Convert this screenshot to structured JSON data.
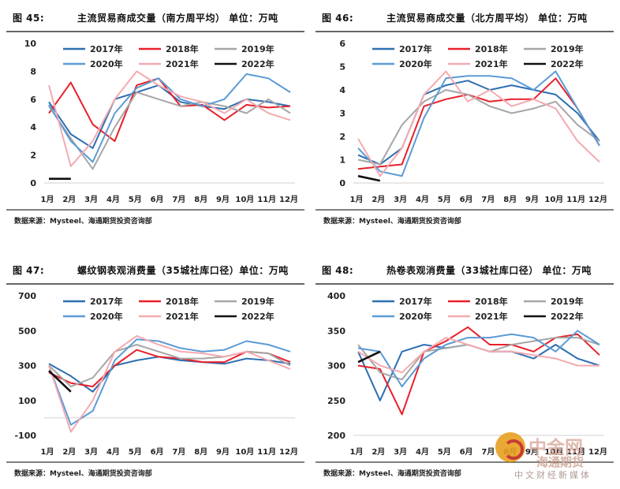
{
  "footer_source": "数据来源：Mysteel、海通期货投资咨询部",
  "watermark": {
    "line1": "中金网",
    "line2": "海通期货",
    "line3": "中文财经新媒体"
  },
  "series_styles": [
    {
      "name": "2017年",
      "color": "#2e6fb0"
    },
    {
      "name": "2018年",
      "color": "#e8202a"
    },
    {
      "name": "2019年",
      "color": "#a6a6a6"
    },
    {
      "name": "2020年",
      "color": "#5b9bd5"
    },
    {
      "name": "2021年",
      "color": "#f4aab0"
    },
    {
      "name": "2022年",
      "color": "#111111"
    }
  ],
  "chart_data": [
    {
      "type": "line",
      "number": "图 45:",
      "title": "主流贸易商成交量（南方周平均）  单位：万吨",
      "categories": [
        "1月",
        "2月",
        "3月",
        "4月",
        "5月",
        "6月",
        "7月",
        "8月",
        "9月",
        "10月",
        "11月",
        "12月"
      ],
      "yticks": [
        "10",
        "8",
        "6",
        "4",
        "2",
        "0"
      ],
      "ylim": [
        0,
        10
      ],
      "series": [
        {
          "name": "2017年",
          "values": [
            5.8,
            3.5,
            2.5,
            6.0,
            6.5,
            7.0,
            5.8,
            5.5,
            5.3,
            6.0,
            5.8,
            5.5
          ]
        },
        {
          "name": "2018年",
          "values": [
            5.0,
            7.2,
            4.2,
            3.0,
            7.0,
            7.5,
            5.5,
            5.6,
            4.5,
            5.6,
            5.4,
            5.5
          ]
        },
        {
          "name": "2019年",
          "values": [
            5.5,
            3.2,
            1.0,
            4.0,
            6.5,
            6.0,
            5.5,
            5.8,
            5.5,
            5.0,
            6.0,
            5.0
          ]
        },
        {
          "name": "2020年",
          "values": [
            5.6,
            3.0,
            1.5,
            5.0,
            6.8,
            7.5,
            6.0,
            5.5,
            6.0,
            7.8,
            7.5,
            6.5
          ]
        },
        {
          "name": "2021年",
          "values": [
            7.0,
            1.2,
            3.0,
            6.0,
            8.0,
            7.0,
            6.2,
            5.8,
            5.0,
            6.0,
            5.0,
            4.5
          ]
        },
        {
          "name": "2022年",
          "values": [
            0.3,
            0.3,
            null,
            null,
            null,
            null,
            null,
            null,
            null,
            null,
            null,
            null
          ]
        }
      ]
    },
    {
      "type": "line",
      "number": "图 46:",
      "title": "主流贸易商成交量（北方周平均）  单位：万吨",
      "categories": [
        "1月",
        "2月",
        "3月",
        "4月",
        "5月",
        "6月",
        "7月",
        "8月",
        "9月",
        "10月",
        "11月",
        "12月"
      ],
      "yticks": [
        "6",
        "5",
        "4",
        "3",
        "2",
        "1",
        "0"
      ],
      "ylim": [
        0,
        6
      ],
      "series": [
        {
          "name": "2017年",
          "values": [
            1.2,
            0.8,
            1.5,
            3.8,
            4.2,
            4.4,
            4.0,
            4.2,
            4.0,
            3.8,
            3.0,
            1.8
          ]
        },
        {
          "name": "2018年",
          "values": [
            0.6,
            0.7,
            0.8,
            3.3,
            3.6,
            3.8,
            3.5,
            3.6,
            3.6,
            4.5,
            3.2,
            1.6
          ]
        },
        {
          "name": "2019年",
          "values": [
            1.0,
            0.8,
            2.5,
            3.5,
            4.0,
            3.8,
            3.3,
            3.0,
            3.2,
            3.5,
            2.5,
            1.8
          ]
        },
        {
          "name": "2020年",
          "values": [
            1.5,
            0.5,
            0.3,
            2.8,
            4.5,
            4.6,
            4.6,
            4.5,
            4.0,
            4.8,
            3.2,
            1.6
          ]
        },
        {
          "name": "2021年",
          "values": [
            1.9,
            0.3,
            1.5,
            3.8,
            4.8,
            3.5,
            4.0,
            3.3,
            3.6,
            3.2,
            1.8,
            0.9
          ]
        },
        {
          "name": "2022年",
          "values": [
            0.3,
            0.1,
            null,
            null,
            null,
            null,
            null,
            null,
            null,
            null,
            null,
            null
          ]
        }
      ]
    },
    {
      "type": "line",
      "number": "图 47:",
      "title": "螺纹钢表观消费量（35城社库口径）单位：万吨",
      "categories": [
        "1月",
        "2月",
        "3月",
        "4月",
        "5月",
        "6月",
        "7月",
        "8月",
        "9月",
        "10月",
        "11月",
        "12月"
      ],
      "yticks": [
        "700",
        "500",
        "300",
        "100",
        "-100"
      ],
      "ylim": [
        -100,
        700
      ],
      "series": [
        {
          "name": "2017年",
          "values": [
            310,
            240,
            150,
            300,
            330,
            350,
            330,
            320,
            310,
            340,
            330,
            310
          ]
        },
        {
          "name": "2018年",
          "values": [
            260,
            200,
            180,
            300,
            390,
            350,
            340,
            320,
            320,
            380,
            370,
            320
          ]
        },
        {
          "name": "2019年",
          "values": [
            300,
            180,
            230,
            380,
            420,
            380,
            340,
            340,
            350,
            380,
            370,
            300
          ]
        },
        {
          "name": "2020年",
          "values": [
            300,
            -40,
            40,
            330,
            450,
            440,
            400,
            380,
            390,
            440,
            420,
            380
          ]
        },
        {
          "name": "2021年",
          "values": [
            300,
            -80,
            100,
            380,
            470,
            420,
            380,
            370,
            350,
            380,
            330,
            280
          ]
        },
        {
          "name": "2022年",
          "values": [
            270,
            150,
            null,
            null,
            null,
            null,
            null,
            null,
            null,
            null,
            null,
            null
          ]
        }
      ]
    },
    {
      "type": "line",
      "number": "图 48:",
      "title": "热卷表观消费量（33城社库口径）  单位：万吨",
      "categories": [
        "1月",
        "2月",
        "3月",
        "4月",
        "5月",
        "6月",
        "7月",
        "8月",
        "9月",
        "10月",
        "11月",
        "12月"
      ],
      "yticks": [
        "400",
        "350",
        "300",
        "250",
        "200"
      ],
      "ylim": [
        200,
        400
      ],
      "series": [
        {
          "name": "2017年",
          "values": [
            320,
            250,
            320,
            330,
            325,
            330,
            320,
            320,
            310,
            330,
            310,
            300
          ]
        },
        {
          "name": "2018年",
          "values": [
            300,
            295,
            230,
            320,
            335,
            355,
            330,
            330,
            320,
            340,
            345,
            315
          ]
        },
        {
          "name": "2019年",
          "values": [
            330,
            290,
            280,
            320,
            325,
            330,
            320,
            330,
            335,
            340,
            340,
            330
          ]
        },
        {
          "name": "2020年",
          "values": [
            325,
            320,
            270,
            310,
            330,
            340,
            340,
            345,
            340,
            320,
            350,
            330
          ]
        },
        {
          "name": "2021年",
          "values": [
            320,
            300,
            290,
            320,
            340,
            330,
            320,
            320,
            315,
            310,
            300,
            300
          ]
        },
        {
          "name": "2022年",
          "values": [
            305,
            320,
            null,
            null,
            null,
            null,
            null,
            null,
            null,
            null,
            null,
            null
          ]
        }
      ]
    }
  ]
}
